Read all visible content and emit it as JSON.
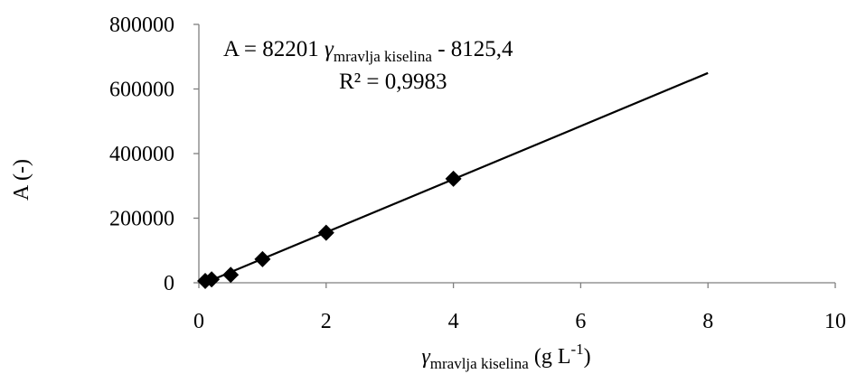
{
  "chart_data": {
    "type": "scatter",
    "x": [
      0.1,
      0.2,
      0.5,
      1,
      2,
      4
    ],
    "y": [
      5500,
      10500,
      24500,
      73000,
      155000,
      322000
    ],
    "xlim": [
      0,
      10
    ],
    "ylim": [
      0,
      800000
    ],
    "x_ticks": [
      "0",
      "2",
      "4",
      "6",
      "8",
      "10"
    ],
    "y_ticks": [
      "0",
      "200000",
      "400000",
      "600000",
      "800000"
    ],
    "trendline": {
      "slope": 82201,
      "intercept": -8125.4,
      "x_range": [
        0.1,
        8
      ]
    },
    "ylabel": "A (-)",
    "xlabel": {
      "symbol": "γ",
      "subscript": "mravlja kiselina",
      "unit_open": " (g L",
      "unit_sup": "-1",
      "unit_close": ")"
    },
    "equation": {
      "prefix": "A = 82201 ",
      "symbol": "γ",
      "subscript": "mravlja kiselina",
      "suffix": " - 8125,4",
      "r2": "R² = 0,9983"
    },
    "grid": false,
    "legend": false,
    "marker": "diamond",
    "color": "#000000"
  }
}
